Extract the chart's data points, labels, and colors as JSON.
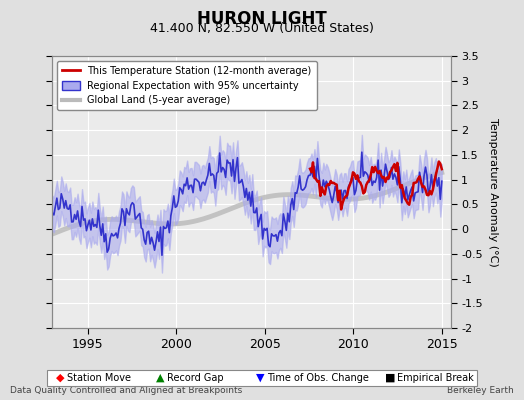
{
  "title": "HURON LIGHT",
  "subtitle": "41.400 N, 82.550 W (United States)",
  "ylabel": "Temperature Anomaly (°C)",
  "footer_left": "Data Quality Controlled and Aligned at Breakpoints",
  "footer_right": "Berkeley Earth",
  "xlim": [
    1993.0,
    2015.5
  ],
  "ylim_left": [
    -2.0,
    3.5
  ],
  "ylim_right": [
    -2.0,
    3.5
  ],
  "xticks": [
    1995,
    2000,
    2005,
    2010,
    2015
  ],
  "yticks": [
    -2,
    -1.5,
    -1,
    -0.5,
    0,
    0.5,
    1,
    1.5,
    2,
    2.5,
    3,
    3.5
  ],
  "background_color": "#e0e0e0",
  "plot_bg_color": "#ebebeb",
  "regional_color": "#3333cc",
  "regional_fill_color": "#aaaaee",
  "station_color": "#cc0000",
  "global_color": "#bbbbbb",
  "legend_items": [
    "This Temperature Station (12-month average)",
    "Regional Expectation with 95% uncertainty",
    "Global Land (5-year average)"
  ]
}
